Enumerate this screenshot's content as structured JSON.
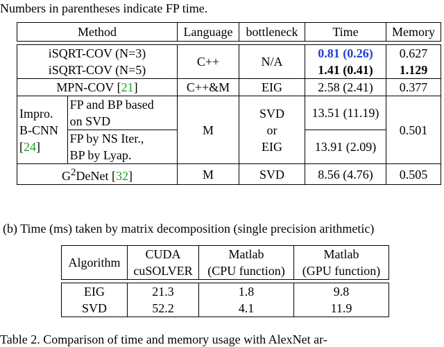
{
  "captions": {
    "top": "Numbers in parentheses indicate FP time.",
    "sub_b": "(b)  Time (ms) taken by matrix decomposition (single precision arithmetic)",
    "bottom": "Table 2. Comparison of time and memory usage with AlexNet ar-"
  },
  "table1": {
    "headers": [
      "Method",
      "Language",
      "bottleneck",
      "Time",
      "Memory"
    ],
    "isqrt": {
      "row3_name": "iSQRT-COV (N=3)",
      "row5_name": "iSQRT-COV (N=5)",
      "language": "C++",
      "bottleneck": "N/A",
      "time3_main": "0.81",
      "time3_fp": "(0.26)",
      "time5_main": "1.41",
      "time5_fp": "(0.41)",
      "mem3": "0.627",
      "mem5": "1.129"
    },
    "mpn": {
      "name": "MPN-COV",
      "cite": "21",
      "language": "C++&M",
      "bottleneck": "EIG",
      "time": "2.58 (2.41)",
      "memory": "0.377"
    },
    "impro": {
      "name_line1": "Impro.",
      "name_line2": "B-CNN",
      "cite": "24",
      "sub1_line1": "FP and BP based",
      "sub1_line2": "on SVD",
      "sub2_line1": "FP by NS Iter.,",
      "sub2_line2": "BP by Lyap.",
      "language": "M",
      "bottleneck_line1": "SVD",
      "bottleneck_line2": "or",
      "bottleneck_line3": "EIG",
      "time1": "13.51 (11.19)",
      "time2": "13.91 (2.09)",
      "memory": "0.501"
    },
    "g2denet": {
      "name_prefix": "G",
      "name_sup": "2",
      "name_suffix": "DeNet",
      "cite": "32",
      "language": "M",
      "bottleneck": "SVD",
      "time": "8.56 (4.76)",
      "memory": "0.505"
    }
  },
  "table2": {
    "h_algorithm": "Algorithm",
    "h_cuda_line1": "CUDA",
    "h_cuda_line2": "cuSOLVER",
    "h_cpu_line1": "Matlab",
    "h_cpu_line2": "(CPU function)",
    "h_gpu_line1": "Matlab",
    "h_gpu_line2": "(GPU function)",
    "rows": [
      {
        "algorithm": "EIG",
        "cuda": "21.3",
        "cpu": "1.8",
        "gpu": "9.8"
      },
      {
        "algorithm": "SVD",
        "cuda": "52.2",
        "cpu": "4.1",
        "gpu": "11.9"
      }
    ]
  },
  "colors": {
    "citation": "#1e9c1e",
    "highlight": "#1f3fd6"
  }
}
